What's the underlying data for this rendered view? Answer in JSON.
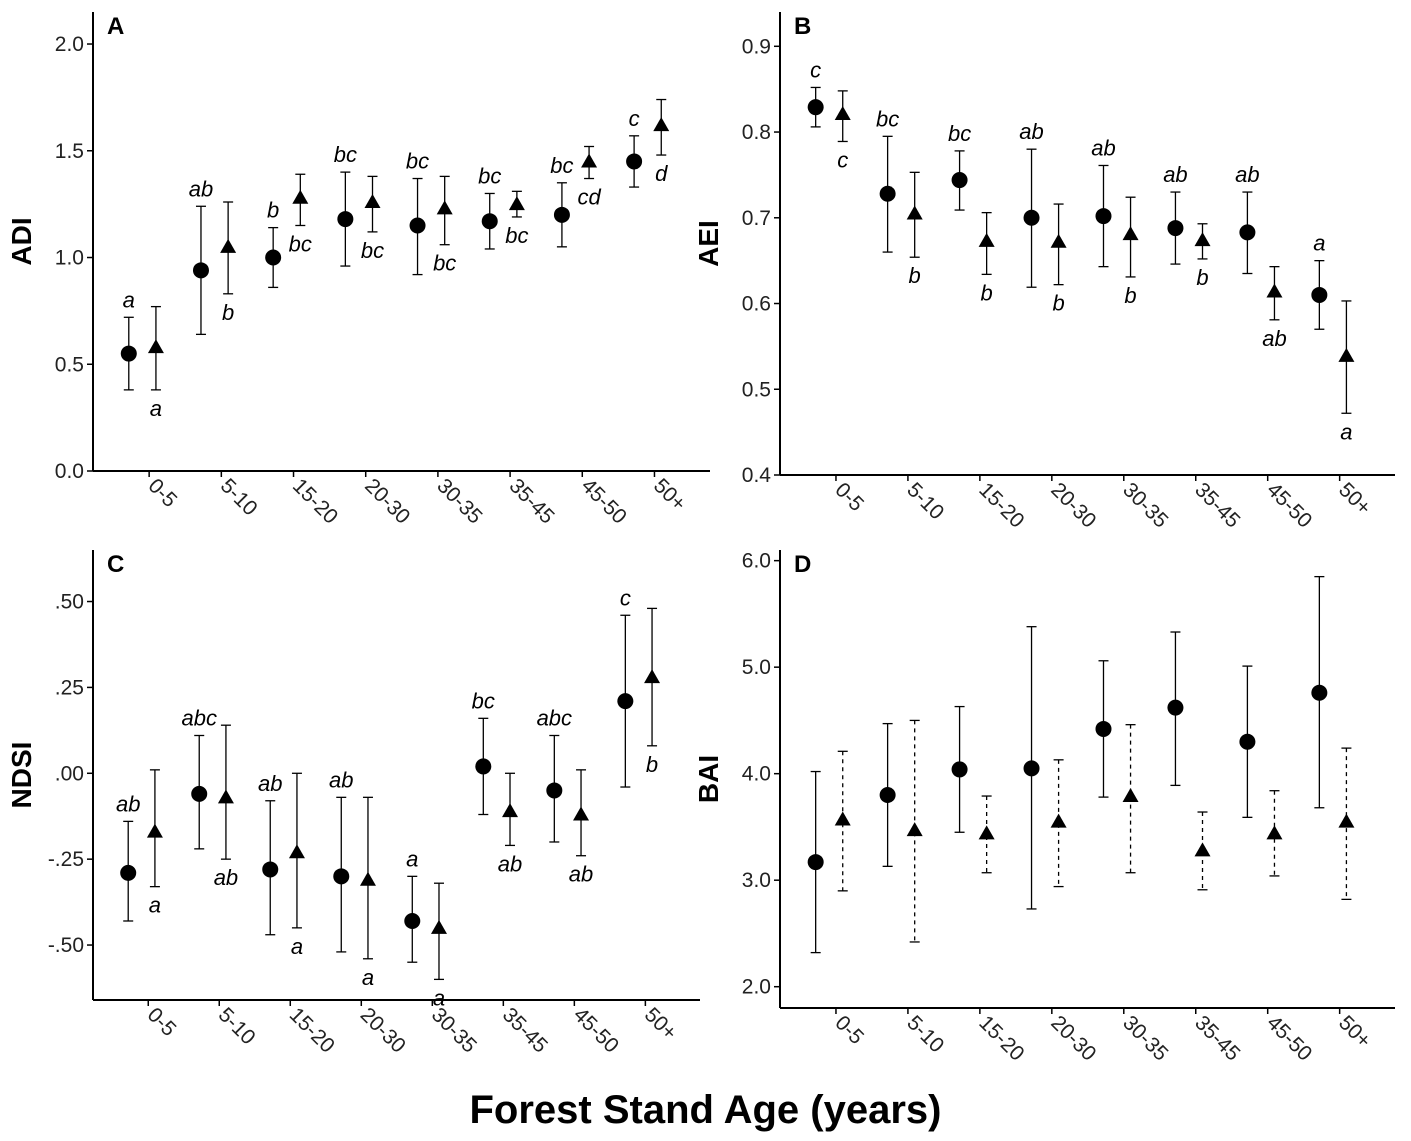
{
  "figure": {
    "xlabel": "Forest Stand Age (years)"
  },
  "chart_data": [
    {
      "type": "scatter",
      "panel": "A",
      "ylabel": "ADI",
      "categories": [
        "0-5",
        "5-10",
        "15-20",
        "20-30",
        "30-35",
        "35-45",
        "45-50",
        "50+"
      ],
      "ylim": [
        0,
        2.15
      ],
      "yticks": [
        {
          "v": 0.0,
          "label": "0.0"
        },
        {
          "v": 0.5,
          "label": "0.5"
        },
        {
          "v": 1.0,
          "label": "1.0"
        },
        {
          "v": 1.5,
          "label": "1.5"
        },
        {
          "v": 2.0,
          "label": "2.0"
        }
      ],
      "series": [
        {
          "marker": "circle",
          "values": [
            0.55,
            0.94,
            1.0,
            1.18,
            1.15,
            1.17,
            1.2,
            1.45
          ],
          "low": [
            0.38,
            0.64,
            0.86,
            0.96,
            0.92,
            1.04,
            1.05,
            1.33
          ],
          "high": [
            0.72,
            1.24,
            1.14,
            1.4,
            1.37,
            1.3,
            1.35,
            1.57
          ],
          "letters": [
            "a",
            "ab",
            "b",
            "bc",
            "bc",
            "bc",
            "bc",
            "c"
          ],
          "letter_pos": [
            "above",
            "above",
            "above",
            "above",
            "above",
            "above",
            "above",
            "above"
          ]
        },
        {
          "marker": "triangle",
          "values": [
            0.58,
            1.05,
            1.28,
            1.26,
            1.23,
            1.25,
            1.45,
            1.62
          ],
          "low": [
            0.38,
            0.83,
            1.15,
            1.12,
            1.06,
            1.19,
            1.37,
            1.48
          ],
          "high": [
            0.77,
            1.26,
            1.39,
            1.38,
            1.38,
            1.31,
            1.52,
            1.74
          ],
          "letters": [
            "a",
            "b",
            "bc",
            "bc",
            "bc",
            "bc",
            "cd",
            "d"
          ],
          "letter_pos": [
            "below",
            "below",
            "below",
            "below",
            "below",
            "below",
            "below",
            "below"
          ]
        }
      ]
    },
    {
      "type": "scatter",
      "panel": "B",
      "ylabel": "AEI",
      "categories": [
        "0-5",
        "5-10",
        "15-20",
        "20-30",
        "30-35",
        "35-45",
        "45-50",
        "50+"
      ],
      "ylim": [
        0.4,
        0.94
      ],
      "yticks": [
        {
          "v": 0.4,
          "label": "0.4"
        },
        {
          "v": 0.5,
          "label": "0.5"
        },
        {
          "v": 0.6,
          "label": "0.6"
        },
        {
          "v": 0.7,
          "label": "0.7"
        },
        {
          "v": 0.8,
          "label": "0.8"
        },
        {
          "v": 0.9,
          "label": "0.9"
        }
      ],
      "series": [
        {
          "marker": "circle",
          "values": [
            0.829,
            0.728,
            0.744,
            0.7,
            0.702,
            0.688,
            0.683,
            0.61
          ],
          "low": [
            0.806,
            0.66,
            0.709,
            0.619,
            0.643,
            0.646,
            0.635,
            0.57
          ],
          "high": [
            0.852,
            0.795,
            0.778,
            0.78,
            0.761,
            0.73,
            0.73,
            0.65
          ],
          "letters": [
            "c",
            "bc",
            "bc",
            "ab",
            "ab",
            "ab",
            "ab",
            "a"
          ],
          "letter_pos": [
            "above",
            "above",
            "above",
            "above",
            "above",
            "above",
            "above",
            "above"
          ]
        },
        {
          "marker": "triangle",
          "values": [
            0.821,
            0.705,
            0.673,
            0.672,
            0.681,
            0.674,
            0.614,
            0.539
          ],
          "low": [
            0.789,
            0.654,
            0.634,
            0.622,
            0.631,
            0.652,
            0.581,
            0.472
          ],
          "high": [
            0.848,
            0.753,
            0.706,
            0.716,
            0.724,
            0.693,
            0.643,
            0.603
          ],
          "letters": [
            "c",
            "b",
            "b",
            "b",
            "b",
            "b",
            "ab",
            "a"
          ],
          "letter_pos": [
            "below",
            "below",
            "below",
            "below",
            "below",
            "below",
            "below",
            "below"
          ]
        }
      ]
    },
    {
      "type": "scatter",
      "panel": "C",
      "ylabel": "NDSI",
      "categories": [
        "0-5",
        "5-10",
        "15-20",
        "20-30",
        "30-35",
        "35-45",
        "45-50",
        "50+"
      ],
      "ylim": [
        -0.66,
        0.65
      ],
      "yticks": [
        {
          "v": -0.5,
          "label": "-.50"
        },
        {
          "v": -0.25,
          "label": "-.25"
        },
        {
          "v": 0.0,
          "label": ".00"
        },
        {
          "v": 0.25,
          "label": ".25"
        },
        {
          "v": 0.5,
          "label": ".50"
        }
      ],
      "series": [
        {
          "marker": "circle",
          "values": [
            -0.29,
            -0.06,
            -0.28,
            -0.3,
            -0.43,
            0.02,
            -0.05,
            0.21
          ],
          "low": [
            -0.43,
            -0.22,
            -0.47,
            -0.52,
            -0.55,
            -0.12,
            -0.2,
            -0.04
          ],
          "high": [
            -0.14,
            0.11,
            -0.08,
            -0.07,
            -0.3,
            0.16,
            0.11,
            0.46
          ],
          "letters": [
            "ab",
            "abc",
            "ab",
            "ab",
            "a",
            "bc",
            "abc",
            "c"
          ],
          "letter_pos": [
            "above",
            "above",
            "above",
            "above",
            "above",
            "above",
            "above",
            "above"
          ]
        },
        {
          "marker": "triangle",
          "values": [
            -0.17,
            -0.07,
            -0.23,
            -0.31,
            -0.45,
            -0.11,
            -0.12,
            0.28
          ],
          "low": [
            -0.33,
            -0.25,
            -0.45,
            -0.54,
            -0.6,
            -0.21,
            -0.24,
            0.08
          ],
          "high": [
            0.01,
            0.14,
            0.0,
            -0.07,
            -0.32,
            0.0,
            0.01,
            0.48
          ],
          "letters": [
            "a",
            "ab",
            "a",
            "a",
            "a",
            "ab",
            "ab",
            "b"
          ],
          "letter_pos": [
            "below",
            "below",
            "below",
            "below",
            "below",
            "below",
            "below",
            "below"
          ]
        }
      ]
    },
    {
      "type": "scatter",
      "panel": "D",
      "ylabel": "BAI",
      "categories": [
        "0-5",
        "5-10",
        "15-20",
        "20-30",
        "30-35",
        "35-45",
        "45-50",
        "50+"
      ],
      "ylim": [
        1.8,
        6.1
      ],
      "yticks": [
        {
          "v": 2.0,
          "label": "2.0"
        },
        {
          "v": 3.0,
          "label": "3.0"
        },
        {
          "v": 4.0,
          "label": "4.0"
        },
        {
          "v": 5.0,
          "label": "5.0"
        },
        {
          "v": 6.0,
          "label": "6.0"
        }
      ],
      "series": [
        {
          "marker": "circle",
          "errorbar": "solid",
          "values": [
            3.17,
            3.8,
            4.04,
            4.05,
            4.42,
            4.62,
            4.3,
            4.76
          ],
          "low": [
            2.32,
            3.13,
            3.45,
            2.73,
            3.78,
            3.89,
            3.59,
            3.68
          ],
          "high": [
            4.02,
            4.47,
            4.63,
            5.38,
            5.06,
            5.33,
            5.01,
            5.85
          ],
          "letters": [
            "",
            "",
            "",
            "",
            "",
            "",
            "",
            ""
          ],
          "letter_pos": [
            "above",
            "above",
            "above",
            "above",
            "above",
            "above",
            "above",
            "above"
          ]
        },
        {
          "marker": "triangle",
          "errorbar": "dashed",
          "values": [
            3.57,
            3.47,
            3.44,
            3.55,
            3.79,
            3.28,
            3.44,
            3.55
          ],
          "low": [
            2.9,
            2.42,
            3.07,
            2.94,
            3.07,
            2.91,
            3.04,
            2.82
          ],
          "high": [
            4.21,
            4.5,
            3.79,
            4.13,
            4.46,
            3.64,
            3.84,
            4.24
          ],
          "letters": [
            "",
            "",
            "",
            "",
            "",
            "",
            "",
            ""
          ],
          "letter_pos": [
            "below",
            "below",
            "below",
            "below",
            "below",
            "below",
            "below",
            "below"
          ]
        }
      ]
    }
  ]
}
